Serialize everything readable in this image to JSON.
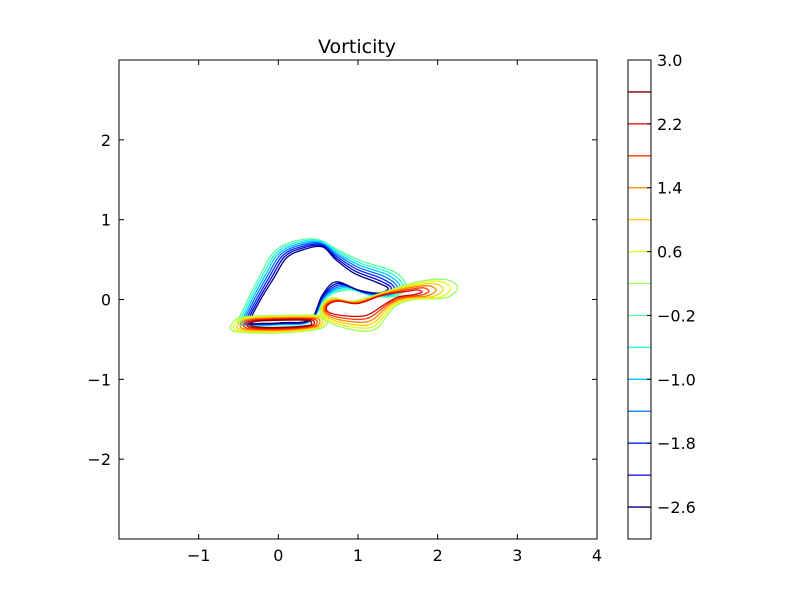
{
  "chart_data": [
    {
      "type": "contour",
      "title": "Vorticity",
      "xlabel": "",
      "ylabel": "",
      "xlim": [
        -2,
        4
      ],
      "ylim": [
        -3,
        3
      ],
      "x_ticks": [
        -1,
        0,
        1,
        2,
        3,
        4
      ],
      "x_tick_labels": [
        "−1",
        "0",
        "1",
        "2",
        "3",
        "4"
      ],
      "y_ticks": [
        -2,
        -1,
        0,
        1,
        2
      ],
      "y_tick_labels": [
        "−2",
        "−1",
        "0",
        "1",
        "2"
      ],
      "grid": false,
      "contour_levels": [
        -2.6,
        -2.2,
        -1.8,
        -1.4,
        -1.0,
        -0.6,
        -0.2,
        0.2,
        0.6,
        1.0,
        1.4,
        1.8,
        2.2,
        2.6
      ],
      "colormap": "jet",
      "level_colors": [
        "#00007f",
        "#0000dc",
        "#0026ff",
        "#0070ff",
        "#00c4ff",
        "#1affe4",
        "#5dff9a",
        "#9aff5d",
        "#e4ff13",
        "#ffd100",
        "#ff8500",
        "#ff3b00",
        "#dc0000",
        "#7f0000"
      ],
      "features": [
        {
          "name": "negative-vortex-lobe",
          "sign": "negative",
          "levels": [
            -2.6,
            -2.2,
            -1.8,
            -1.4,
            -1.0,
            -0.6,
            -0.2
          ],
          "center": [
            0.2,
            0.1
          ],
          "extent_x": [
            -0.5,
            1.6
          ],
          "extent_y": [
            -0.35,
            0.75
          ]
        },
        {
          "name": "positive-shear-band",
          "sign": "positive",
          "levels": [
            0.2,
            0.6,
            1.0,
            1.4,
            1.8,
            2.2,
            2.6
          ],
          "center": [
            0.0,
            -0.32
          ],
          "extent_x": [
            -0.55,
            0.6
          ],
          "extent_y": [
            -0.4,
            -0.2
          ]
        },
        {
          "name": "positive-tail",
          "sign": "positive",
          "levels": [
            0.2,
            0.6,
            1.0,
            1.4,
            1.8,
            2.2
          ],
          "center": [
            1.6,
            0.1
          ],
          "extent_x": [
            0.5,
            2.25
          ],
          "extent_y": [
            -0.4,
            0.25
          ]
        }
      ],
      "colorbar": {
        "range": [
          -3.0,
          3.0
        ],
        "tick_values": [
          3.0,
          2.2,
          1.4,
          0.6,
          -0.2,
          -1.0,
          -1.8,
          -2.6
        ],
        "tick_labels": [
          "3.0",
          "2.2",
          "1.4",
          "0.6",
          "−0.2",
          "−1.0",
          "−1.8",
          "−2.6"
        ],
        "line_levels": [
          2.6,
          2.2,
          1.8,
          1.4,
          1.0,
          0.6,
          0.2,
          -0.2,
          -0.6,
          -1.0,
          -1.4,
          -1.8,
          -2.2,
          -2.6
        ]
      }
    }
  ]
}
